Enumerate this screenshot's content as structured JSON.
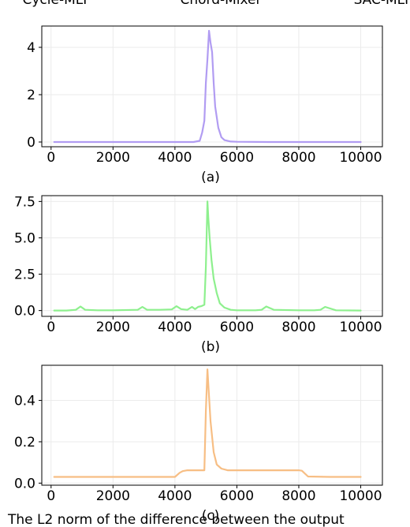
{
  "header": {
    "labels": [
      "Cycle-MLP",
      "Chord-Mixer",
      "SAC-MLP"
    ]
  },
  "caption": {
    "text": "The L2 norm of the difference between the output"
  },
  "chart_data": [
    {
      "type": "line",
      "subplot_label": "(a)",
      "color": "#b19cf2",
      "xlim": [
        -300,
        10700
      ],
      "ylim": [
        -0.2,
        4.9
      ],
      "xticks": [
        0,
        2000,
        4000,
        6000,
        8000,
        10000
      ],
      "yticks": [
        0,
        2,
        4
      ],
      "ytick_labels": [
        "0",
        "2",
        "4"
      ],
      "grid": true,
      "series": [
        {
          "x": [
            100,
            1000,
            2000,
            3000,
            4000,
            4600,
            4800,
            4880,
            4950,
            5000,
            5050,
            5100,
            5150,
            5200,
            5250,
            5300,
            5400,
            5500,
            5600,
            5800,
            6000,
            7000,
            8000,
            9000,
            10000
          ],
          "y": [
            0.0,
            0.0,
            0.0,
            0.0,
            0.0,
            0.0,
            0.05,
            0.4,
            0.9,
            2.5,
            3.5,
            4.7,
            4.2,
            3.8,
            2.5,
            1.5,
            0.6,
            0.2,
            0.08,
            0.02,
            0.01,
            0.0,
            0.0,
            0.0,
            0.0
          ]
        }
      ]
    },
    {
      "type": "line",
      "subplot_label": "(b)",
      "color": "#8ef08e",
      "xlim": [
        -300,
        10700
      ],
      "ylim": [
        -0.4,
        7.9
      ],
      "xticks": [
        0,
        2000,
        4000,
        6000,
        8000,
        10000
      ],
      "yticks": [
        0,
        2.5,
        5,
        7.5
      ],
      "ytick_labels": [
        "0.0",
        "2.5",
        "5.0",
        "7.5"
      ],
      "grid": true,
      "series": [
        {
          "x": [
            100,
            500,
            800,
            950,
            1100,
            1500,
            2000,
            2800,
            2950,
            3100,
            3500,
            3900,
            4050,
            4200,
            4400,
            4550,
            4650,
            4750,
            4850,
            4950,
            5000,
            5050,
            5080,
            5120,
            5180,
            5250,
            5350,
            5450,
            5600,
            5800,
            6000,
            6600,
            6800,
            6950,
            7200,
            8000,
            8500,
            8700,
            8850,
            9200,
            10000
          ],
          "y": [
            0.0,
            0.0,
            0.05,
            0.28,
            0.05,
            0.02,
            0.02,
            0.05,
            0.25,
            0.05,
            0.05,
            0.08,
            0.3,
            0.1,
            0.05,
            0.25,
            0.1,
            0.25,
            0.3,
            0.4,
            3.0,
            7.5,
            6.3,
            5.0,
            3.5,
            2.2,
            1.2,
            0.5,
            0.2,
            0.05,
            0.02,
            0.02,
            0.05,
            0.28,
            0.05,
            0.02,
            0.02,
            0.05,
            0.25,
            0.02,
            0.0
          ]
        }
      ]
    },
    {
      "type": "line",
      "subplot_label": "(c)",
      "color": "#f7be84",
      "xlim": [
        -300,
        10700
      ],
      "ylim": [
        -0.01,
        0.57
      ],
      "xticks": [
        0,
        2000,
        4000,
        6000,
        8000,
        10000
      ],
      "yticks": [
        0,
        0.2,
        0.4
      ],
      "ytick_labels": [
        "0.0",
        "0.2",
        "0.4"
      ],
      "grid": true,
      "series": [
        {
          "x": [
            100,
            1000,
            2000,
            3000,
            4000,
            4150,
            4250,
            4400,
            4600,
            4800,
            4950,
            5000,
            5050,
            5100,
            5150,
            5250,
            5350,
            5500,
            5700,
            6000,
            7000,
            8000,
            8100,
            8300,
            9000,
            10000
          ],
          "y": [
            0.03,
            0.03,
            0.03,
            0.03,
            0.03,
            0.05,
            0.058,
            0.062,
            0.062,
            0.062,
            0.062,
            0.35,
            0.55,
            0.42,
            0.3,
            0.15,
            0.09,
            0.07,
            0.062,
            0.062,
            0.062,
            0.062,
            0.06,
            0.032,
            0.03,
            0.03
          ]
        }
      ]
    }
  ]
}
